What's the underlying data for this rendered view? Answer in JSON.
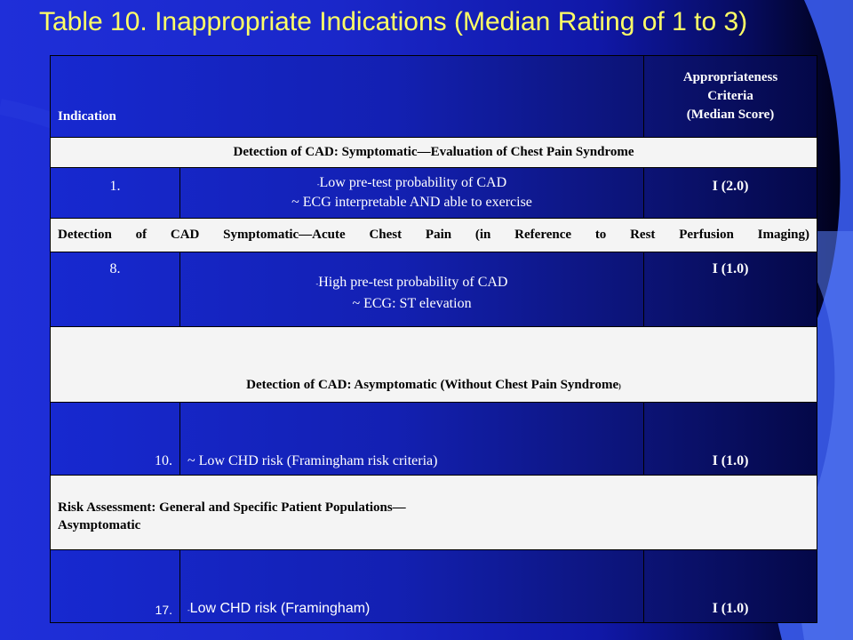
{
  "title": "Table 10. Inappropriate Indications (Median Rating of 1 to 3)",
  "colors": {
    "title": "#ffff66",
    "background": "#1f2fd9",
    "section_row": "#f4f4f4"
  },
  "header": {
    "indication": "Indication",
    "criteria_line1": "Appropriateness",
    "criteria_line2": "Criteria",
    "criteria_line3": "(Median Score)"
  },
  "sections": [
    {
      "heading": "Detection of CAD: Symptomatic—Evaluation of Chest Pain Syndrome",
      "row": {
        "num": "1.",
        "marker": "-",
        "line1": "Low pre-test probability of CAD",
        "line2": "~ ECG interpretable AND able to exercise",
        "rating": "I (2.0)"
      }
    },
    {
      "heading": "Detection of CAD Symptomatic—Acute Chest Pain (in Reference to Rest Perfusion Imaging)",
      "row": {
        "num": "8.",
        "marker": "-",
        "line1": "High pre-test probability of CAD",
        "line2": "~ ECG: ST elevation",
        "rating": "I (1.0)"
      }
    },
    {
      "heading": "Detection of CAD: Asymptomatic (Without Chest Pain Syndrome",
      "heading_tail": ")",
      "row": {
        "num": "10.",
        "line1": "~ Low CHD risk (Framingham risk criteria)",
        "rating": "I (1.0)"
      }
    },
    {
      "heading": "Risk Assessment:  General and Specific Patient Populations—",
      "heading_line2": "Asymptomatic",
      "row": {
        "num": "17.",
        "marker": "-",
        "line1": "Low CHD risk (Framingham)",
        "rating": "I (1.0)"
      }
    }
  ]
}
